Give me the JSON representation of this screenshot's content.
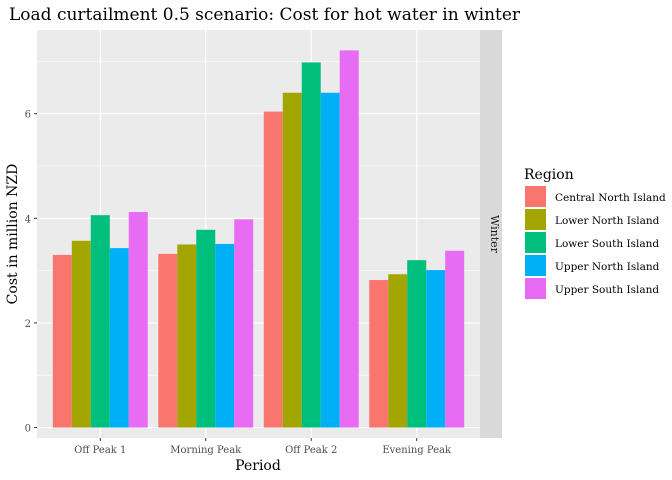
{
  "chart_data": {
    "type": "bar",
    "title": "Load curtailment 0.5 scenario: Cost for hot water in winter",
    "xlabel": "Period",
    "ylabel": "Cost in million NZD",
    "facet_label": "Winter",
    "legend_title": "Region",
    "legend_position": "right",
    "grid": true,
    "ylim": [
      -0.2,
      7.6
    ],
    "yticks": [
      0,
      2,
      4,
      6
    ],
    "categories": [
      "Off Peak 1",
      "Morning Peak",
      "Off Peak 2",
      "Evening Peak"
    ],
    "series": [
      {
        "name": "Central North Island",
        "color": "#F8766D",
        "values": [
          3.3,
          3.32,
          6.04,
          2.82
        ]
      },
      {
        "name": "Lower North Island",
        "color": "#A3A500",
        "values": [
          3.57,
          3.5,
          6.4,
          2.93
        ]
      },
      {
        "name": "Lower South Island",
        "color": "#00BF7D",
        "values": [
          4.06,
          3.78,
          6.98,
          3.2
        ]
      },
      {
        "name": "Upper North Island",
        "color": "#00B0F6",
        "values": [
          3.43,
          3.51,
          6.4,
          3.01
        ]
      },
      {
        "name": "Upper South Island",
        "color": "#E76BF3",
        "values": [
          4.12,
          3.98,
          7.21,
          3.38
        ]
      }
    ]
  }
}
